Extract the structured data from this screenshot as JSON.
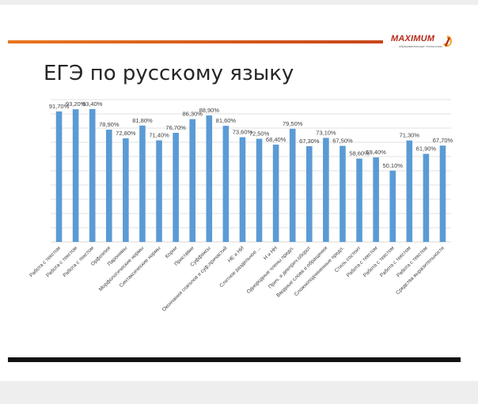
{
  "slide": {
    "title": "ЕГЭ по русскому языку"
  },
  "logo": {
    "name": "MAXIMUM",
    "tagline": "образовательные технологии",
    "brand_color": "#b42a1a",
    "accent_color": "#f0a020"
  },
  "colors": {
    "bar": "#5b9bd5",
    "gridline": "#d9d9d9",
    "label": "#404040",
    "header_line": "#e8761e"
  },
  "chart_data": {
    "type": "bar",
    "title": "",
    "xlabel": "",
    "ylabel": "",
    "ylim": [
      0,
      100
    ],
    "grid": true,
    "legend": "none",
    "categories": [
      "Работа с текстом",
      "Работа с текстом",
      "Работа с текстом",
      "Орфоэпия",
      "Паронимы",
      "Морфологические нормы",
      "Синтаксические нормы",
      "Корни",
      "Приставки",
      "Суффиксы",
      "Окончания глаголов и суф.причастий",
      "НЕ и НИ",
      "Слитное раздельное ...",
      "Н и НН",
      "Однородные члены предл.",
      "Прич. и дееприч.оборот",
      "Вводные слова и обращения",
      "Сложноподчиненные предл.",
      "Стиль состоит",
      "Работа с текстом",
      "Работа с текстом",
      "Работа с текстом",
      "Работа с текстом",
      "Средства выразительности"
    ],
    "values": [
      91.7,
      93.2,
      93.4,
      78.9,
      72.8,
      81.8,
      71.4,
      76.7,
      86.3,
      88.9,
      81.6,
      73.6,
      72.5,
      68.4,
      79.5,
      67.3,
      73.1,
      67.5,
      58.6,
      59.4,
      50.1,
      71.3,
      61.9,
      67.7
    ],
    "value_labels": [
      "91,70%",
      "93,20%",
      "93,40%",
      "78,90%",
      "72,80%",
      "81,80%",
      "71,40%",
      "76,70%",
      "86,30%",
      "88,90%",
      "81,60%",
      "73,60%",
      "72,50%",
      "68,40%",
      "79,50%",
      "67,30%",
      "73,10%",
      "67,50%",
      "58,60%",
      "59,40%",
      "50,10%",
      "71,30%",
      "61,90%",
      "67,70%"
    ]
  }
}
